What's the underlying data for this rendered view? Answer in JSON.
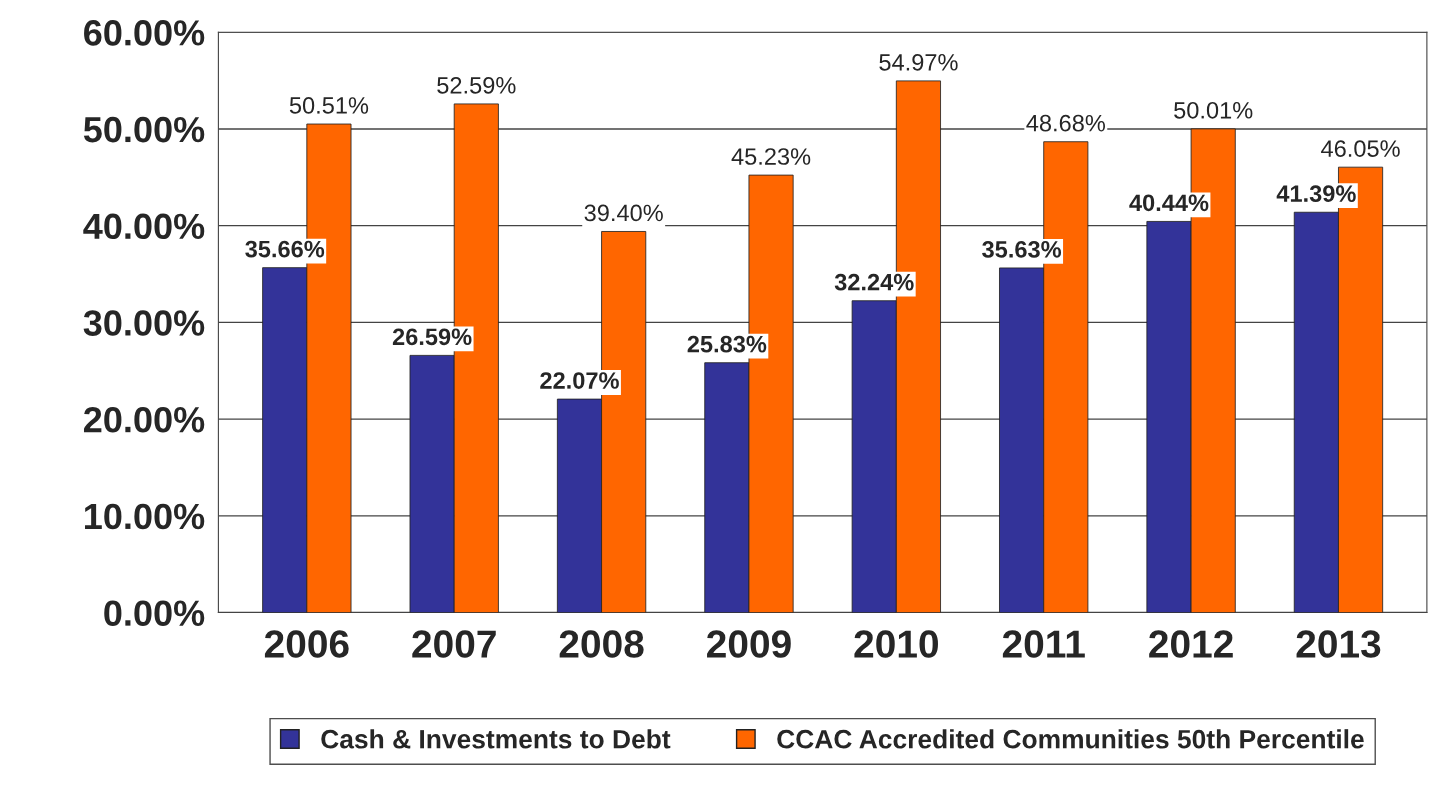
{
  "chart_data": {
    "type": "bar",
    "categories": [
      "2006",
      "2007",
      "2008",
      "2009",
      "2010",
      "2011",
      "2012",
      "2013"
    ],
    "series": [
      {
        "name": "Cash & Investments to Debt",
        "color": "#333399",
        "values": [
          35.66,
          26.59,
          22.07,
          25.83,
          32.24,
          35.63,
          40.44,
          41.39
        ],
        "value_labels": [
          "35.66%",
          "26.59%",
          "22.07%",
          "25.83%",
          "32.24%",
          "35.63%",
          "40.44%",
          "41.39%"
        ]
      },
      {
        "name": "CCAC Accredited Communities 50th Percentile",
        "color": "#ff6600",
        "values": [
          50.51,
          52.59,
          39.4,
          45.23,
          54.97,
          48.68,
          50.01,
          46.05
        ],
        "value_labels": [
          "50.51%",
          "52.59%",
          "39.40%",
          "45.23%",
          "54.97%",
          "48.68%",
          "50.01%",
          "46.05%"
        ]
      }
    ],
    "ylim": [
      0,
      60
    ],
    "yticks": [
      {
        "value": 0,
        "label": "0.00%"
      },
      {
        "value": 10,
        "label": "10.00%"
      },
      {
        "value": 20,
        "label": "20.00%"
      },
      {
        "value": 30,
        "label": "30.00%"
      },
      {
        "value": 40,
        "label": "40.00%"
      },
      {
        "value": 50,
        "label": "50.00%"
      },
      {
        "value": 60,
        "label": "60.00%"
      }
    ],
    "grid": "y",
    "legend": "bottom"
  }
}
